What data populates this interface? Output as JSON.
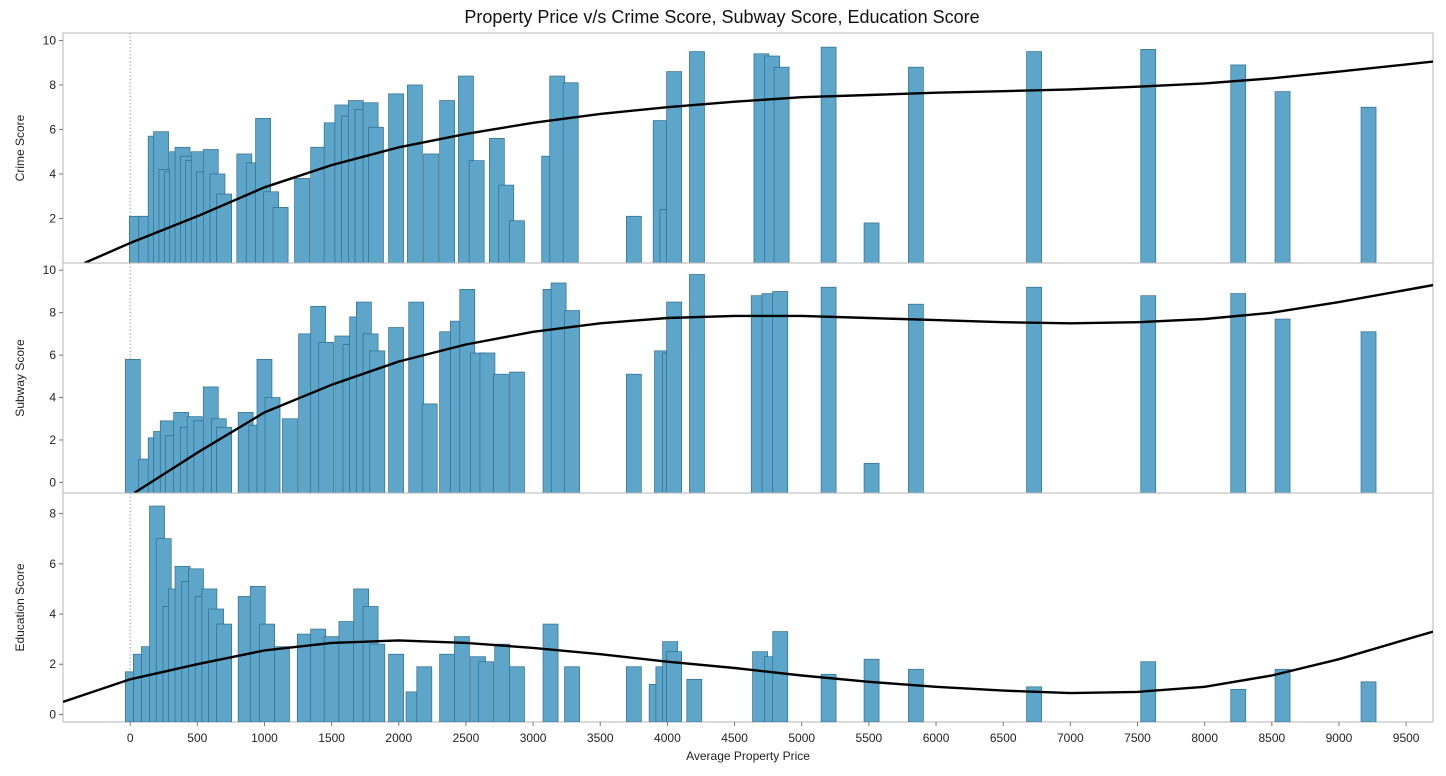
{
  "chart_data": {
    "type": "bar",
    "title": "Property Price v/s Crime Score, Subway Score, Education Score",
    "xlabel": "Average Property Price",
    "x_ticks": [
      0,
      500,
      1000,
      1500,
      2000,
      2500,
      3000,
      3500,
      4000,
      4500,
      5000,
      5500,
      6000,
      6500,
      7000,
      7500,
      8000,
      8500,
      9000,
      9500
    ],
    "xlim": [
      -500,
      9700
    ],
    "bar_color": "#5ea6c9",
    "bar_edge": "#2f6c8f",
    "trend_color": "#000000",
    "grid": false,
    "legend": "none",
    "panels": [
      {
        "name": "Crime Score",
        "ylabel": "Crime Score",
        "ylim": [
          0,
          10.2
        ],
        "y_ticks": [
          2,
          4,
          6,
          8,
          10
        ],
        "bars": [
          {
            "x": 50,
            "y": 2.1
          },
          {
            "x": 120,
            "y": 2.1
          },
          {
            "x": 190,
            "y": 5.7
          },
          {
            "x": 230,
            "y": 5.9
          },
          {
            "x": 270,
            "y": 4.2
          },
          {
            "x": 310,
            "y": 4.1
          },
          {
            "x": 350,
            "y": 5.0
          },
          {
            "x": 390,
            "y": 5.2
          },
          {
            "x": 430,
            "y": 4.8
          },
          {
            "x": 470,
            "y": 4.6
          },
          {
            "x": 510,
            "y": 5.0
          },
          {
            "x": 550,
            "y": 4.1
          },
          {
            "x": 600,
            "y": 5.1
          },
          {
            "x": 650,
            "y": 4.0
          },
          {
            "x": 700,
            "y": 3.1
          },
          {
            "x": 850,
            "y": 4.9
          },
          {
            "x": 920,
            "y": 4.5
          },
          {
            "x": 990,
            "y": 6.5
          },
          {
            "x": 1050,
            "y": 3.2
          },
          {
            "x": 1120,
            "y": 2.5
          },
          {
            "x": 1280,
            "y": 3.8
          },
          {
            "x": 1400,
            "y": 5.2
          },
          {
            "x": 1500,
            "y": 6.3
          },
          {
            "x": 1580,
            "y": 7.1
          },
          {
            "x": 1630,
            "y": 6.6
          },
          {
            "x": 1680,
            "y": 7.3
          },
          {
            "x": 1730,
            "y": 6.9
          },
          {
            "x": 1790,
            "y": 7.2
          },
          {
            "x": 1830,
            "y": 6.1
          },
          {
            "x": 1980,
            "y": 7.6
          },
          {
            "x": 2120,
            "y": 8.0
          },
          {
            "x": 2240,
            "y": 4.9
          },
          {
            "x": 2360,
            "y": 7.3
          },
          {
            "x": 2500,
            "y": 8.4
          },
          {
            "x": 2580,
            "y": 4.6
          },
          {
            "x": 2730,
            "y": 5.6
          },
          {
            "x": 2800,
            "y": 3.5
          },
          {
            "x": 2880,
            "y": 1.9
          },
          {
            "x": 3120,
            "y": 4.8
          },
          {
            "x": 3180,
            "y": 8.4
          },
          {
            "x": 3280,
            "y": 8.1
          },
          {
            "x": 3750,
            "y": 2.1
          },
          {
            "x": 3950,
            "y": 6.4
          },
          {
            "x": 4000,
            "y": 2.4
          },
          {
            "x": 4050,
            "y": 8.6
          },
          {
            "x": 4220,
            "y": 9.5
          },
          {
            "x": 4700,
            "y": 9.4
          },
          {
            "x": 4780,
            "y": 9.3
          },
          {
            "x": 4850,
            "y": 8.8
          },
          {
            "x": 5200,
            "y": 9.7
          },
          {
            "x": 5520,
            "y": 1.8
          },
          {
            "x": 5850,
            "y": 8.8
          },
          {
            "x": 6730,
            "y": 9.5
          },
          {
            "x": 7580,
            "y": 9.6
          },
          {
            "x": 8250,
            "y": 8.9
          },
          {
            "x": 8580,
            "y": 7.7
          },
          {
            "x": 9220,
            "y": 7.0
          }
        ],
        "trend": [
          {
            "x": -340,
            "y": 0.0
          },
          {
            "x": 0,
            "y": 0.9
          },
          {
            "x": 500,
            "y": 2.1
          },
          {
            "x": 1000,
            "y": 3.4
          },
          {
            "x": 1500,
            "y": 4.4
          },
          {
            "x": 2000,
            "y": 5.2
          },
          {
            "x": 2500,
            "y": 5.8
          },
          {
            "x": 3000,
            "y": 6.3
          },
          {
            "x": 3500,
            "y": 6.7
          },
          {
            "x": 4000,
            "y": 7.0
          },
          {
            "x": 4500,
            "y": 7.25
          },
          {
            "x": 5000,
            "y": 7.45
          },
          {
            "x": 5500,
            "y": 7.55
          },
          {
            "x": 6000,
            "y": 7.65
          },
          {
            "x": 6500,
            "y": 7.72
          },
          {
            "x": 7000,
            "y": 7.8
          },
          {
            "x": 7500,
            "y": 7.92
          },
          {
            "x": 8000,
            "y": 8.07
          },
          {
            "x": 8500,
            "y": 8.3
          },
          {
            "x": 9000,
            "y": 8.6
          },
          {
            "x": 9700,
            "y": 9.05
          }
        ]
      },
      {
        "name": "Subway Score",
        "ylabel": "Subway Score",
        "ylim": [
          -0.5,
          10.2
        ],
        "y_ticks": [
          0,
          2,
          4,
          6,
          8,
          10
        ],
        "bars": [
          {
            "x": 20,
            "y": 5.8
          },
          {
            "x": 120,
            "y": 1.1
          },
          {
            "x": 190,
            "y": 2.1
          },
          {
            "x": 230,
            "y": 2.4
          },
          {
            "x": 280,
            "y": 2.9
          },
          {
            "x": 320,
            "y": 2.2
          },
          {
            "x": 380,
            "y": 3.3
          },
          {
            "x": 430,
            "y": 2.6
          },
          {
            "x": 480,
            "y": 3.1
          },
          {
            "x": 530,
            "y": 2.9
          },
          {
            "x": 600,
            "y": 4.5
          },
          {
            "x": 660,
            "y": 3.0
          },
          {
            "x": 700,
            "y": 2.6
          },
          {
            "x": 860,
            "y": 3.3
          },
          {
            "x": 940,
            "y": 2.7
          },
          {
            "x": 1000,
            "y": 5.8
          },
          {
            "x": 1060,
            "y": 4.0
          },
          {
            "x": 1190,
            "y": 3.0
          },
          {
            "x": 1310,
            "y": 7.0
          },
          {
            "x": 1400,
            "y": 8.3
          },
          {
            "x": 1460,
            "y": 6.6
          },
          {
            "x": 1580,
            "y": 6.9
          },
          {
            "x": 1640,
            "y": 6.5
          },
          {
            "x": 1690,
            "y": 7.8
          },
          {
            "x": 1740,
            "y": 8.5
          },
          {
            "x": 1790,
            "y": 7.0
          },
          {
            "x": 1840,
            "y": 6.2
          },
          {
            "x": 1980,
            "y": 7.3
          },
          {
            "x": 2130,
            "y": 8.5
          },
          {
            "x": 2230,
            "y": 3.7
          },
          {
            "x": 2360,
            "y": 7.1
          },
          {
            "x": 2440,
            "y": 7.6
          },
          {
            "x": 2510,
            "y": 9.1
          },
          {
            "x": 2590,
            "y": 6.1
          },
          {
            "x": 2660,
            "y": 6.1
          },
          {
            "x": 2760,
            "y": 5.1
          },
          {
            "x": 2880,
            "y": 5.2
          },
          {
            "x": 3130,
            "y": 9.1
          },
          {
            "x": 3190,
            "y": 9.4
          },
          {
            "x": 3290,
            "y": 8.1
          },
          {
            "x": 3750,
            "y": 5.1
          },
          {
            "x": 3960,
            "y": 6.2
          },
          {
            "x": 4020,
            "y": 6.1
          },
          {
            "x": 4050,
            "y": 8.5
          },
          {
            "x": 4220,
            "y": 9.8
          },
          {
            "x": 4680,
            "y": 8.8
          },
          {
            "x": 4760,
            "y": 8.9
          },
          {
            "x": 4840,
            "y": 9.0
          },
          {
            "x": 5200,
            "y": 9.2
          },
          {
            "x": 5520,
            "y": 0.9
          },
          {
            "x": 5850,
            "y": 8.4
          },
          {
            "x": 6730,
            "y": 9.2
          },
          {
            "x": 7580,
            "y": 8.8
          },
          {
            "x": 8250,
            "y": 8.9
          },
          {
            "x": 8580,
            "y": 7.7
          },
          {
            "x": 9220,
            "y": 7.1
          }
        ],
        "trend": [
          {
            "x": 30,
            "y": -0.5
          },
          {
            "x": 500,
            "y": 1.4
          },
          {
            "x": 1000,
            "y": 3.3
          },
          {
            "x": 1500,
            "y": 4.6
          },
          {
            "x": 2000,
            "y": 5.7
          },
          {
            "x": 2500,
            "y": 6.5
          },
          {
            "x": 3000,
            "y": 7.1
          },
          {
            "x": 3500,
            "y": 7.5
          },
          {
            "x": 4000,
            "y": 7.75
          },
          {
            "x": 4500,
            "y": 7.85
          },
          {
            "x": 5000,
            "y": 7.85
          },
          {
            "x": 5500,
            "y": 7.75
          },
          {
            "x": 6000,
            "y": 7.65
          },
          {
            "x": 6500,
            "y": 7.55
          },
          {
            "x": 7000,
            "y": 7.5
          },
          {
            "x": 7500,
            "y": 7.55
          },
          {
            "x": 8000,
            "y": 7.7
          },
          {
            "x": 8500,
            "y": 8.0
          },
          {
            "x": 9000,
            "y": 8.5
          },
          {
            "x": 9700,
            "y": 9.3
          }
        ]
      },
      {
        "name": "Education Score",
        "ylabel": "Education Score",
        "ylim": [
          -0.3,
          8.7
        ],
        "y_ticks": [
          0,
          2,
          4,
          6,
          8
        ],
        "bars": [
          {
            "x": 20,
            "y": 1.7
          },
          {
            "x": 80,
            "y": 2.4
          },
          {
            "x": 140,
            "y": 2.7
          },
          {
            "x": 200,
            "y": 8.3
          },
          {
            "x": 250,
            "y": 7.0
          },
          {
            "x": 300,
            "y": 4.3
          },
          {
            "x": 340,
            "y": 5.0
          },
          {
            "x": 390,
            "y": 5.9
          },
          {
            "x": 440,
            "y": 5.3
          },
          {
            "x": 490,
            "y": 5.8
          },
          {
            "x": 540,
            "y": 4.7
          },
          {
            "x": 590,
            "y": 5.0
          },
          {
            "x": 640,
            "y": 4.2
          },
          {
            "x": 700,
            "y": 3.6
          },
          {
            "x": 860,
            "y": 4.7
          },
          {
            "x": 950,
            "y": 5.1
          },
          {
            "x": 1020,
            "y": 3.6
          },
          {
            "x": 1130,
            "y": 2.7
          },
          {
            "x": 1300,
            "y": 3.2
          },
          {
            "x": 1400,
            "y": 3.4
          },
          {
            "x": 1500,
            "y": 3.1
          },
          {
            "x": 1610,
            "y": 3.7
          },
          {
            "x": 1720,
            "y": 5.0
          },
          {
            "x": 1790,
            "y": 4.3
          },
          {
            "x": 1840,
            "y": 2.8
          },
          {
            "x": 1980,
            "y": 2.4
          },
          {
            "x": 2110,
            "y": 0.9
          },
          {
            "x": 2190,
            "y": 1.9
          },
          {
            "x": 2360,
            "y": 2.4
          },
          {
            "x": 2470,
            "y": 3.1
          },
          {
            "x": 2590,
            "y": 2.3
          },
          {
            "x": 2650,
            "y": 2.1
          },
          {
            "x": 2770,
            "y": 2.8
          },
          {
            "x": 2880,
            "y": 1.9
          },
          {
            "x": 3130,
            "y": 3.6
          },
          {
            "x": 3290,
            "y": 1.9
          },
          {
            "x": 3750,
            "y": 1.9
          },
          {
            "x": 3920,
            "y": 1.2
          },
          {
            "x": 3970,
            "y": 1.9
          },
          {
            "x": 4020,
            "y": 2.9
          },
          {
            "x": 4050,
            "y": 2.5
          },
          {
            "x": 4200,
            "y": 1.4
          },
          {
            "x": 4690,
            "y": 2.5
          },
          {
            "x": 4780,
            "y": 2.3
          },
          {
            "x": 4840,
            "y": 3.3
          },
          {
            "x": 5200,
            "y": 1.6
          },
          {
            "x": 5520,
            "y": 2.2
          },
          {
            "x": 5850,
            "y": 1.8
          },
          {
            "x": 6730,
            "y": 1.1
          },
          {
            "x": 7580,
            "y": 2.1
          },
          {
            "x": 8250,
            "y": 1.0
          },
          {
            "x": 8580,
            "y": 1.8
          },
          {
            "x": 9220,
            "y": 1.3
          }
        ],
        "trend": [
          {
            "x": -500,
            "y": 0.5
          },
          {
            "x": 0,
            "y": 1.4
          },
          {
            "x": 500,
            "y": 2.0
          },
          {
            "x": 1000,
            "y": 2.55
          },
          {
            "x": 1500,
            "y": 2.85
          },
          {
            "x": 2000,
            "y": 2.95
          },
          {
            "x": 2500,
            "y": 2.85
          },
          {
            "x": 3000,
            "y": 2.65
          },
          {
            "x": 3500,
            "y": 2.4
          },
          {
            "x": 4000,
            "y": 2.1
          },
          {
            "x": 4500,
            "y": 1.85
          },
          {
            "x": 5000,
            "y": 1.55
          },
          {
            "x": 5500,
            "y": 1.3
          },
          {
            "x": 6000,
            "y": 1.1
          },
          {
            "x": 6500,
            "y": 0.95
          },
          {
            "x": 7000,
            "y": 0.85
          },
          {
            "x": 7500,
            "y": 0.9
          },
          {
            "x": 8000,
            "y": 1.1
          },
          {
            "x": 8500,
            "y": 1.55
          },
          {
            "x": 9000,
            "y": 2.2
          },
          {
            "x": 9700,
            "y": 3.3
          }
        ]
      }
    ]
  }
}
